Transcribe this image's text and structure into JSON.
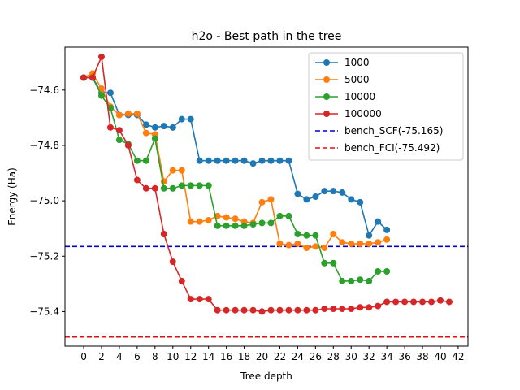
{
  "chart_data": {
    "type": "line",
    "title": "h2o - Best path in the tree",
    "xlabel": "Tree depth",
    "ylabel": "Energy (Ha)",
    "xlim": [
      -2.1,
      43.1
    ],
    "ylim": [
      -75.525,
      -74.445
    ],
    "xticks": [
      0,
      2,
      4,
      6,
      8,
      10,
      12,
      14,
      16,
      18,
      20,
      22,
      24,
      26,
      28,
      30,
      32,
      34,
      36,
      38,
      40,
      42
    ],
    "yticks": [
      -75.4,
      -75.2,
      -75.0,
      -74.8,
      -74.6
    ],
    "ytick_labels": [
      "−75.4",
      "−75.2",
      "−75.0",
      "−74.8",
      "−74.6"
    ],
    "legend_position": "top-right",
    "series": [
      {
        "name": "1000",
        "color": "#1f77b4",
        "values": [
          -74.555,
          -74.555,
          -74.61,
          -74.61,
          -74.69,
          -74.69,
          -74.69,
          -74.725,
          -74.735,
          -74.73,
          -74.735,
          -74.705,
          -74.705,
          -74.855,
          -74.855,
          -74.855,
          -74.855,
          -74.855,
          -74.855,
          -74.865,
          -74.855,
          -74.855,
          -74.855,
          -74.855,
          -74.975,
          -74.995,
          -74.985,
          -74.965,
          -74.965,
          -74.97,
          -74.995,
          -75.005,
          -75.125,
          -75.075,
          -75.105
        ]
      },
      {
        "name": "5000",
        "color": "#ff7f0e",
        "values": [
          -74.555,
          -74.54,
          -74.595,
          -74.66,
          -74.69,
          -74.685,
          -74.685,
          -74.755,
          -74.76,
          -74.93,
          -74.89,
          -74.89,
          -75.075,
          -75.075,
          -75.07,
          -75.055,
          -75.06,
          -75.065,
          -75.075,
          -75.08,
          -75.005,
          -74.995,
          -75.155,
          -75.16,
          -75.155,
          -75.17,
          -75.165,
          -75.17,
          -75.12,
          -75.15,
          -75.155,
          -75.155,
          -75.155,
          -75.15,
          -75.14
        ]
      },
      {
        "name": "10000",
        "color": "#2ca02c",
        "values": [
          -74.555,
          -74.555,
          -74.62,
          -74.665,
          -74.78,
          -74.795,
          -74.855,
          -74.855,
          -74.775,
          -74.955,
          -74.955,
          -74.945,
          -74.945,
          -74.945,
          -74.945,
          -75.09,
          -75.09,
          -75.09,
          -75.09,
          -75.085,
          -75.08,
          -75.08,
          -75.055,
          -75.055,
          -75.12,
          -75.125,
          -75.125,
          -75.225,
          -75.225,
          -75.29,
          -75.29,
          -75.285,
          -75.29,
          -75.255,
          -75.255
        ]
      },
      {
        "name": "100000",
        "color": "#d62728",
        "values": [
          -74.555,
          -74.555,
          -74.48,
          -74.735,
          -74.745,
          -74.8,
          -74.925,
          -74.955,
          -74.955,
          -75.12,
          -75.22,
          -75.29,
          -75.355,
          -75.355,
          -75.355,
          -75.395,
          -75.395,
          -75.395,
          -75.395,
          -75.395,
          -75.4,
          -75.395,
          -75.395,
          -75.395,
          -75.395,
          -75.395,
          -75.395,
          -75.39,
          -75.39,
          -75.39,
          -75.39,
          -75.385,
          -75.385,
          -75.38,
          -75.365,
          -75.365,
          -75.365,
          -75.365,
          -75.365,
          -75.365,
          -75.36,
          -75.365
        ]
      }
    ],
    "reference_lines": [
      {
        "name": "bench_SCF(-75.165)",
        "y": -75.165,
        "color": "#0000cc",
        "style": "dashed"
      },
      {
        "name": "bench_FCI(-75.492)",
        "y": -75.492,
        "color": "#dd1111",
        "style": "dashed"
      }
    ]
  }
}
